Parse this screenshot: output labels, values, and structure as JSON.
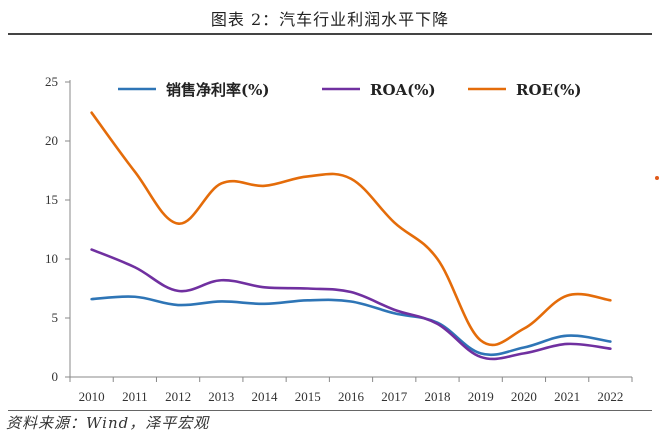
{
  "title": "图表 2：汽车行业利润水平下降",
  "source": "资料来源：Wind，泽平宏观",
  "chart_data": {
    "type": "line",
    "x": [
      "2010",
      "2011",
      "2012",
      "2013",
      "2014",
      "2015",
      "2016",
      "2017",
      "2018",
      "2019",
      "2020",
      "2021",
      "2022"
    ],
    "ylim": [
      0,
      25
    ],
    "yticks": [
      0,
      5,
      10,
      15,
      20,
      25
    ],
    "grid": false,
    "legend_position": "top",
    "series": [
      {
        "name": "销售净利率(%)",
        "color": "#2e75b6",
        "values": [
          6.6,
          6.8,
          6.1,
          6.4,
          6.2,
          6.5,
          6.4,
          5.4,
          4.6,
          2.0,
          2.5,
          3.5,
          3.0
        ]
      },
      {
        "name": "ROA(%)",
        "color": "#7030a0",
        "values": [
          10.8,
          9.3,
          7.3,
          8.2,
          7.6,
          7.5,
          7.2,
          5.7,
          4.5,
          1.7,
          2.0,
          2.8,
          2.4
        ]
      },
      {
        "name": "ROE(%)",
        "color": "#e46c0a",
        "values": [
          22.4,
          17.4,
          13.0,
          16.4,
          16.2,
          17.0,
          16.8,
          13.1,
          10.0,
          3.1,
          4.1,
          6.9,
          6.5
        ]
      }
    ]
  }
}
